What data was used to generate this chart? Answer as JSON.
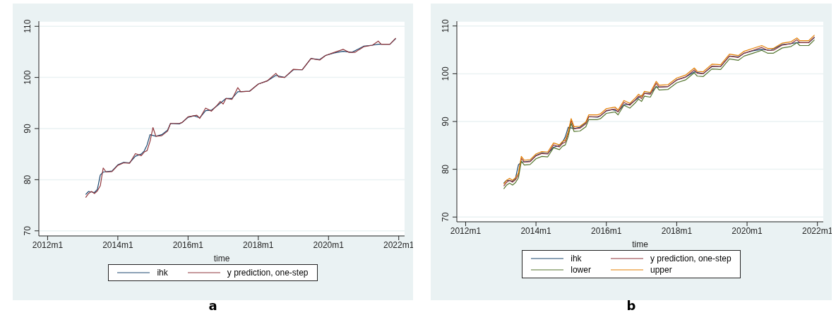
{
  "chart_data": [
    {
      "type": "line",
      "xlabel": "time",
      "annotations": [
        "a"
      ],
      "legend": "bottom",
      "grid": "y",
      "line_style": "solid",
      "xlim": [
        "2011-10",
        "2022-03"
      ],
      "ylim": [
        69,
        111
      ],
      "yticks": [
        70,
        80,
        90,
        100,
        110
      ],
      "xticks": [
        {
          "value": "2012-01",
          "label": "2012m1"
        },
        {
          "value": "2014-01",
          "label": "2014m1"
        },
        {
          "value": "2016-01",
          "label": "2016m1"
        },
        {
          "value": "2018-01",
          "label": "2018m1"
        },
        {
          "value": "2020-01",
          "label": "2020m1"
        },
        {
          "value": "2022-01",
          "label": "2022m1"
        }
      ],
      "x": [
        "2013-02",
        "2013-03",
        "2013-04",
        "2013-05",
        "2013-06",
        "2013-07",
        "2013-08",
        "2013-09",
        "2013-11",
        "2014-01",
        "2014-03",
        "2014-05",
        "2014-07",
        "2014-09",
        "2014-10",
        "2014-11",
        "2014-12",
        "2015-01",
        "2015-02",
        "2015-04",
        "2015-06",
        "2015-07",
        "2015-10",
        "2015-11",
        "2016-01",
        "2016-03",
        "2016-04",
        "2016-05",
        "2016-07",
        "2016-09",
        "2016-11",
        "2016-12",
        "2017-01",
        "2017-02",
        "2017-04",
        "2017-06",
        "2017-07",
        "2017-10",
        "2018-01",
        "2018-04",
        "2018-07",
        "2018-08",
        "2018-10",
        "2019-01",
        "2019-04",
        "2019-07",
        "2019-10",
        "2019-12",
        "2020-03",
        "2020-06",
        "2020-08",
        "2020-10",
        "2021-01",
        "2021-04",
        "2021-06",
        "2021-07",
        "2021-10",
        "2021-12"
      ],
      "series": [
        {
          "name": "ihk",
          "color": "#1a476f",
          "x": [
            "2013-02",
            "2013-03",
            "2013-05",
            "2013-06",
            "2013-07",
            "2013-08",
            "2013-11",
            "2014-01",
            "2014-03",
            "2014-05",
            "2014-07",
            "2014-09",
            "2014-10",
            "2014-11",
            "2014-12",
            "2015-02",
            "2015-04",
            "2015-06",
            "2015-07",
            "2015-10",
            "2015-11",
            "2016-01",
            "2016-03",
            "2016-05",
            "2016-07",
            "2016-09",
            "2016-11",
            "2017-02",
            "2017-04",
            "2017-06",
            "2017-10",
            "2018-01",
            "2018-04",
            "2018-07",
            "2018-10",
            "2019-01",
            "2019-04",
            "2019-07",
            "2019-10",
            "2019-12",
            "2020-03",
            "2020-06",
            "2020-09",
            "2021-01",
            "2021-04",
            "2021-06",
            "2021-10",
            "2021-12"
          ],
          "values": [
            77.1,
            77.7,
            77.5,
            78.1,
            80.9,
            81.5,
            81.7,
            82.9,
            83.4,
            83.3,
            84.6,
            85.0,
            85.6,
            86.8,
            88.8,
            88.5,
            88.8,
            89.7,
            91.0,
            90.9,
            91.2,
            92.2,
            92.5,
            92.1,
            93.5,
            93.6,
            94.5,
            95.9,
            95.9,
            97.2,
            97.3,
            98.7,
            99.3,
            100.4,
            100.0,
            101.5,
            101.5,
            103.7,
            103.5,
            104.3,
            104.8,
            105.1,
            104.9,
            106.1,
            106.3,
            106.5,
            106.5,
            107.6
          ]
        },
        {
          "name": "y prediction, one-step",
          "color": "#90353b",
          "values": [
            76.5,
            77.3,
            77.7,
            77.3,
            77.8,
            78.8,
            82.3,
            81.5,
            81.6,
            82.8,
            83.3,
            83.2,
            85.1,
            84.7,
            85.4,
            85.7,
            87.5,
            90.2,
            88.5,
            88.6,
            89.5,
            91.0,
            91.0,
            91.2,
            92.3,
            92.5,
            92.6,
            92.0,
            94.0,
            93.4,
            94.6,
            95.3,
            94.8,
            95.9,
            95.7,
            98.0,
            97.2,
            97.3,
            98.7,
            99.3,
            100.8,
            100.1,
            100.0,
            101.6,
            101.5,
            103.7,
            103.4,
            104.3,
            104.9,
            105.5,
            104.9,
            104.9,
            106.0,
            106.3,
            107.1,
            106.5,
            106.5,
            107.7
          ]
        }
      ]
    },
    {
      "type": "line",
      "xlabel": "time",
      "annotations": [
        "b"
      ],
      "legend": "bottom",
      "grid": "y",
      "line_style": "solid",
      "xlim": [
        "2011-10",
        "2022-03"
      ],
      "ylim": [
        69,
        111
      ],
      "yticks": [
        70,
        80,
        90,
        100,
        110
      ],
      "xticks": [
        {
          "value": "2012-01",
          "label": "2012m1"
        },
        {
          "value": "2014-01",
          "label": "2014m1"
        },
        {
          "value": "2016-01",
          "label": "2016m1"
        },
        {
          "value": "2018-01",
          "label": "2018m1"
        },
        {
          "value": "2020-01",
          "label": "2020m1"
        },
        {
          "value": "2022-01",
          "label": "2022m1"
        }
      ],
      "x": [
        "2013-02",
        "2013-03",
        "2013-04",
        "2013-05",
        "2013-06",
        "2013-07",
        "2013-08",
        "2013-09",
        "2013-11",
        "2014-01",
        "2014-03",
        "2014-05",
        "2014-07",
        "2014-09",
        "2014-10",
        "2014-11",
        "2014-12",
        "2015-01",
        "2015-02",
        "2015-04",
        "2015-06",
        "2015-07",
        "2015-10",
        "2015-11",
        "2016-01",
        "2016-03",
        "2016-04",
        "2016-05",
        "2016-07",
        "2016-09",
        "2016-11",
        "2016-12",
        "2017-01",
        "2017-02",
        "2017-04",
        "2017-06",
        "2017-07",
        "2017-10",
        "2018-01",
        "2018-04",
        "2018-07",
        "2018-08",
        "2018-10",
        "2019-01",
        "2019-04",
        "2019-07",
        "2019-10",
        "2019-12",
        "2020-03",
        "2020-06",
        "2020-08",
        "2020-10",
        "2021-01",
        "2021-04",
        "2021-06",
        "2021-07",
        "2021-10",
        "2021-12"
      ],
      "series": [
        {
          "name": "ihk",
          "color": "#1a476f",
          "x": [
            "2013-02",
            "2013-03",
            "2013-05",
            "2013-06",
            "2013-07",
            "2013-08",
            "2013-11",
            "2014-01",
            "2014-03",
            "2014-05",
            "2014-07",
            "2014-09",
            "2014-10",
            "2014-11",
            "2014-12",
            "2015-02",
            "2015-04",
            "2015-06",
            "2015-07",
            "2015-10",
            "2015-11",
            "2016-01",
            "2016-03",
            "2016-05",
            "2016-07",
            "2016-09",
            "2016-11",
            "2017-02",
            "2017-04",
            "2017-06",
            "2017-10",
            "2018-01",
            "2018-04",
            "2018-07",
            "2018-10",
            "2019-01",
            "2019-04",
            "2019-07",
            "2019-10",
            "2019-12",
            "2020-03",
            "2020-06",
            "2020-09",
            "2021-01",
            "2021-04",
            "2021-06",
            "2021-10",
            "2021-12"
          ],
          "values": [
            77.1,
            77.7,
            77.5,
            78.1,
            80.9,
            81.5,
            81.7,
            82.9,
            83.4,
            83.3,
            84.6,
            85.0,
            85.6,
            86.8,
            88.8,
            88.5,
            88.8,
            89.7,
            91.0,
            90.9,
            91.2,
            92.2,
            92.5,
            92.1,
            93.5,
            93.6,
            94.5,
            95.9,
            95.9,
            97.2,
            97.3,
            98.7,
            99.3,
            100.4,
            100.0,
            101.5,
            101.5,
            103.7,
            103.5,
            104.3,
            104.8,
            105.1,
            104.9,
            106.1,
            106.3,
            106.5,
            106.5,
            107.6
          ]
        },
        {
          "name": "y prediction, one-step",
          "color": "#90353b",
          "values": [
            76.5,
            77.3,
            77.7,
            77.3,
            77.8,
            78.8,
            82.3,
            81.5,
            81.6,
            82.8,
            83.3,
            83.2,
            85.1,
            84.7,
            85.4,
            85.7,
            87.5,
            90.2,
            88.5,
            88.6,
            89.5,
            91.0,
            91.0,
            91.2,
            92.3,
            92.5,
            92.6,
            92.0,
            94.0,
            93.4,
            94.6,
            95.3,
            94.8,
            95.9,
            95.7,
            98.0,
            97.2,
            97.3,
            98.7,
            99.3,
            100.8,
            100.1,
            100.0,
            101.6,
            101.5,
            103.7,
            103.4,
            104.3,
            104.9,
            105.5,
            104.9,
            104.9,
            106.0,
            106.3,
            107.1,
            106.5,
            106.5,
            107.7
          ]
        },
        {
          "name": "lower",
          "color": "#55752f",
          "values": [
            75.9,
            76.7,
            77.1,
            76.7,
            77.2,
            78.2,
            81.7,
            80.9,
            81.0,
            82.2,
            82.7,
            82.6,
            84.5,
            84.1,
            84.8,
            85.1,
            86.9,
            89.6,
            87.9,
            88.0,
            88.9,
            90.4,
            90.4,
            90.6,
            91.7,
            91.9,
            92.0,
            91.4,
            93.4,
            92.8,
            94.0,
            94.7,
            94.2,
            95.3,
            95.1,
            97.4,
            96.6,
            96.7,
            98.1,
            98.7,
            100.2,
            99.5,
            99.4,
            101.0,
            100.9,
            103.1,
            102.8,
            103.7,
            104.3,
            104.9,
            104.3,
            104.3,
            105.4,
            105.7,
            106.5,
            105.9,
            105.9,
            107.1
          ]
        },
        {
          "name": "upper",
          "color": "#e37e00",
          "values": [
            76.9,
            77.7,
            78.1,
            77.7,
            78.2,
            79.2,
            82.7,
            81.9,
            82.0,
            83.2,
            83.7,
            83.6,
            85.5,
            85.1,
            85.8,
            86.1,
            87.9,
            90.6,
            88.9,
            89.0,
            89.9,
            91.4,
            91.4,
            91.6,
            92.7,
            92.9,
            93.0,
            92.4,
            94.4,
            93.8,
            95.0,
            95.7,
            95.2,
            96.3,
            96.1,
            98.4,
            97.6,
            97.7,
            99.1,
            99.7,
            101.2,
            100.5,
            100.4,
            102.0,
            101.9,
            104.1,
            103.8,
            104.7,
            105.3,
            105.9,
            105.3,
            105.3,
            106.4,
            106.7,
            107.5,
            106.9,
            106.9,
            108.1
          ]
        }
      ]
    }
  ]
}
